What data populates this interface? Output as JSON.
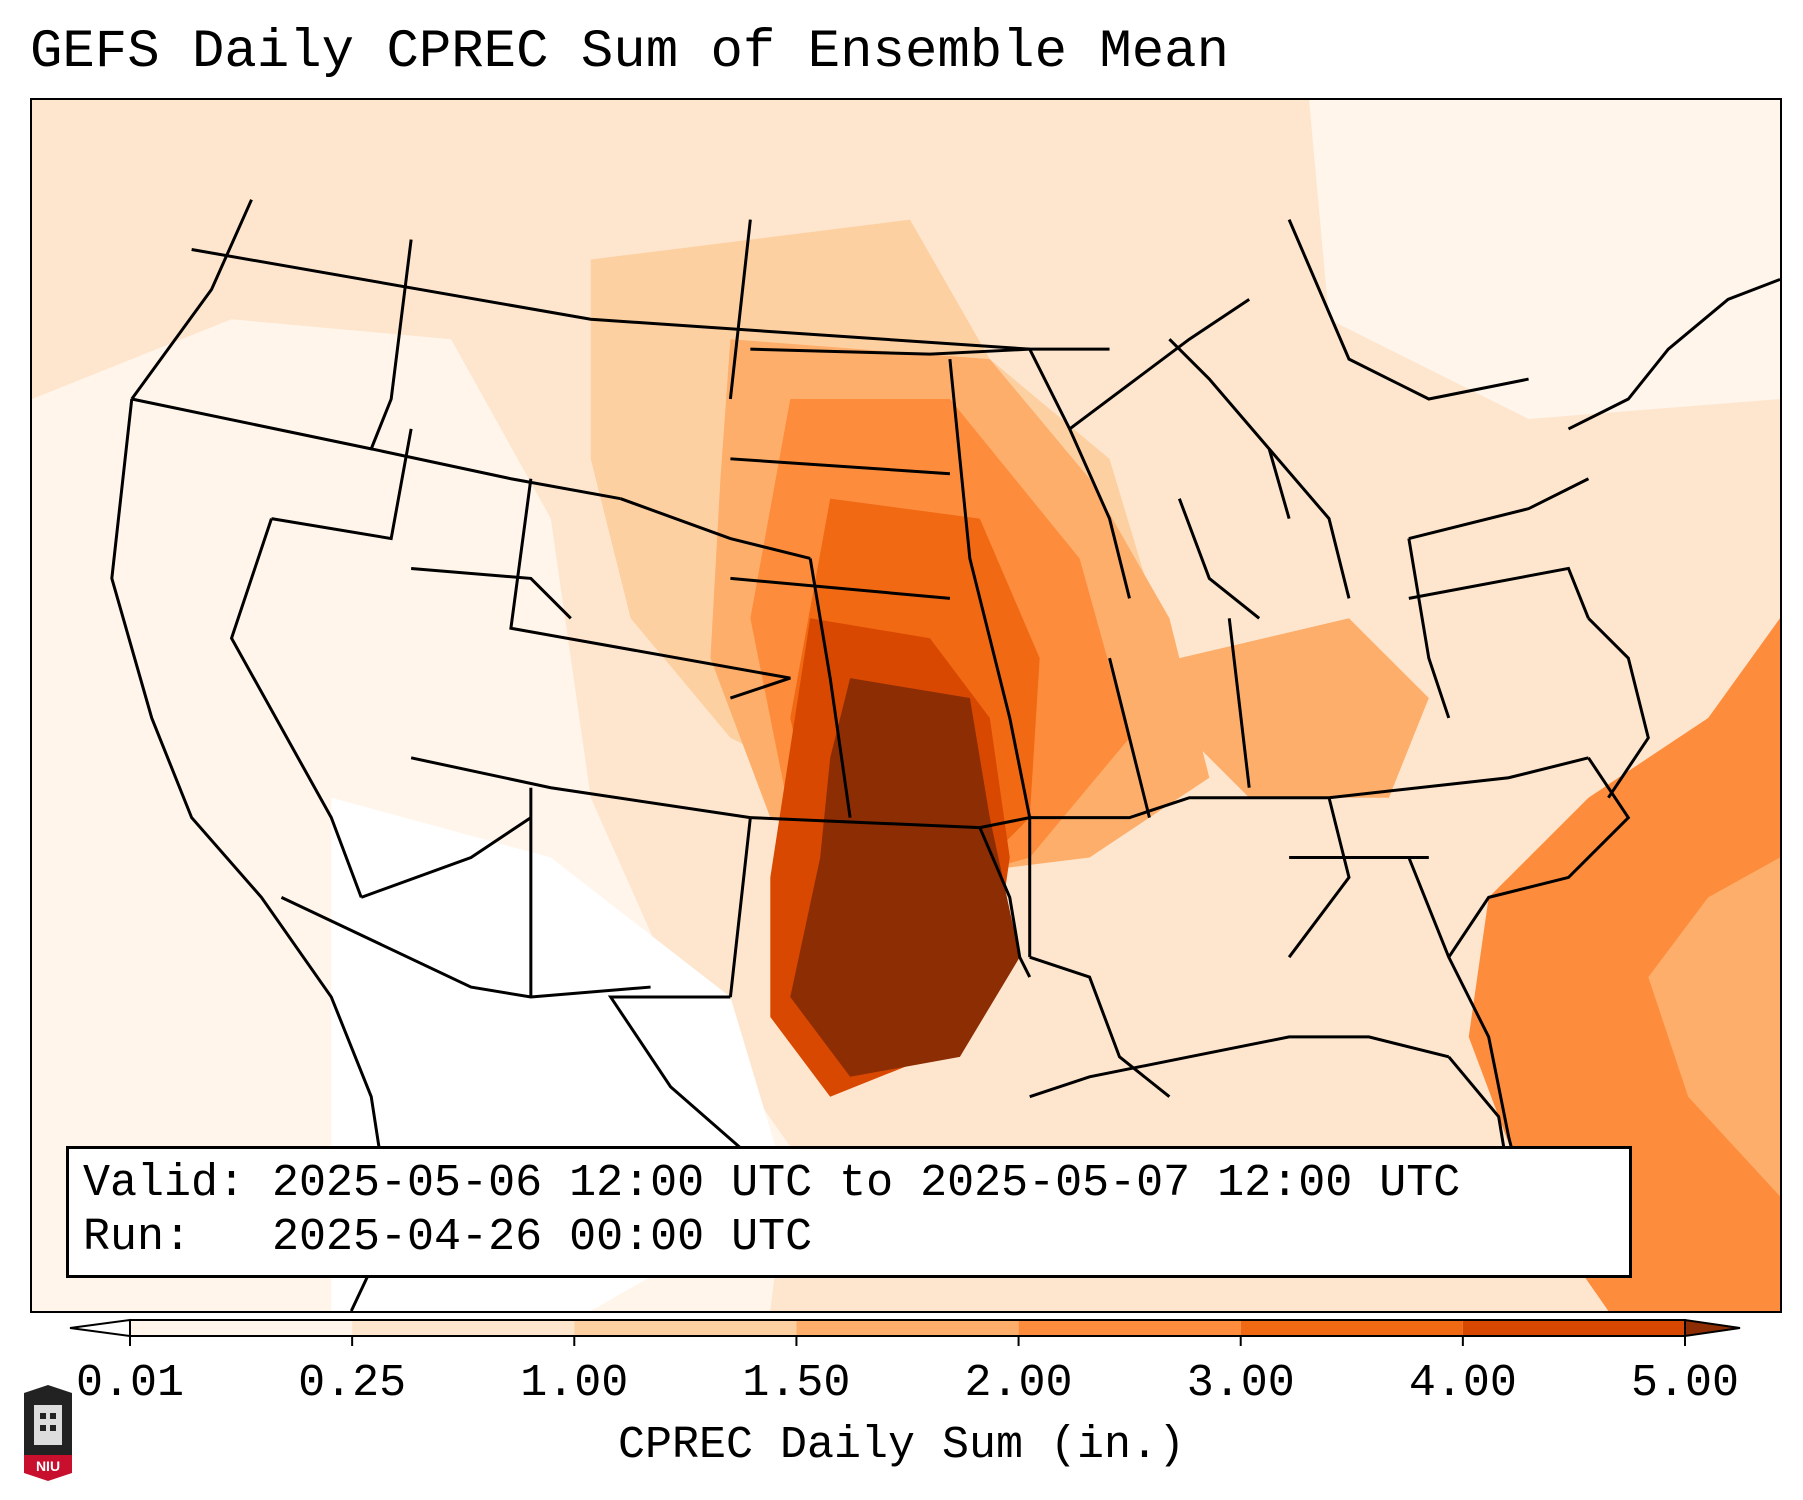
{
  "title": "GEFS Daily CPREC Sum of Ensemble Mean",
  "info": {
    "valid_line": "Valid: 2025-05-06 12:00 UTC to 2025-05-07 12:00 UTC",
    "run_line": "Run:   2025-04-26 00:00 UTC"
  },
  "colorbar": {
    "label": "CPREC Daily Sum (in.)",
    "ticks": [
      "0.01",
      "0.25",
      "1.00",
      "1.50",
      "2.00",
      "3.00",
      "4.00",
      "5.00"
    ],
    "colors": [
      "#fff5eb",
      "#fee6ce",
      "#fdd0a2",
      "#fdae6b",
      "#fd8d3c",
      "#f16913",
      "#d94801",
      "#8c2d04"
    ]
  },
  "logo": {
    "text": "NIU"
  }
}
